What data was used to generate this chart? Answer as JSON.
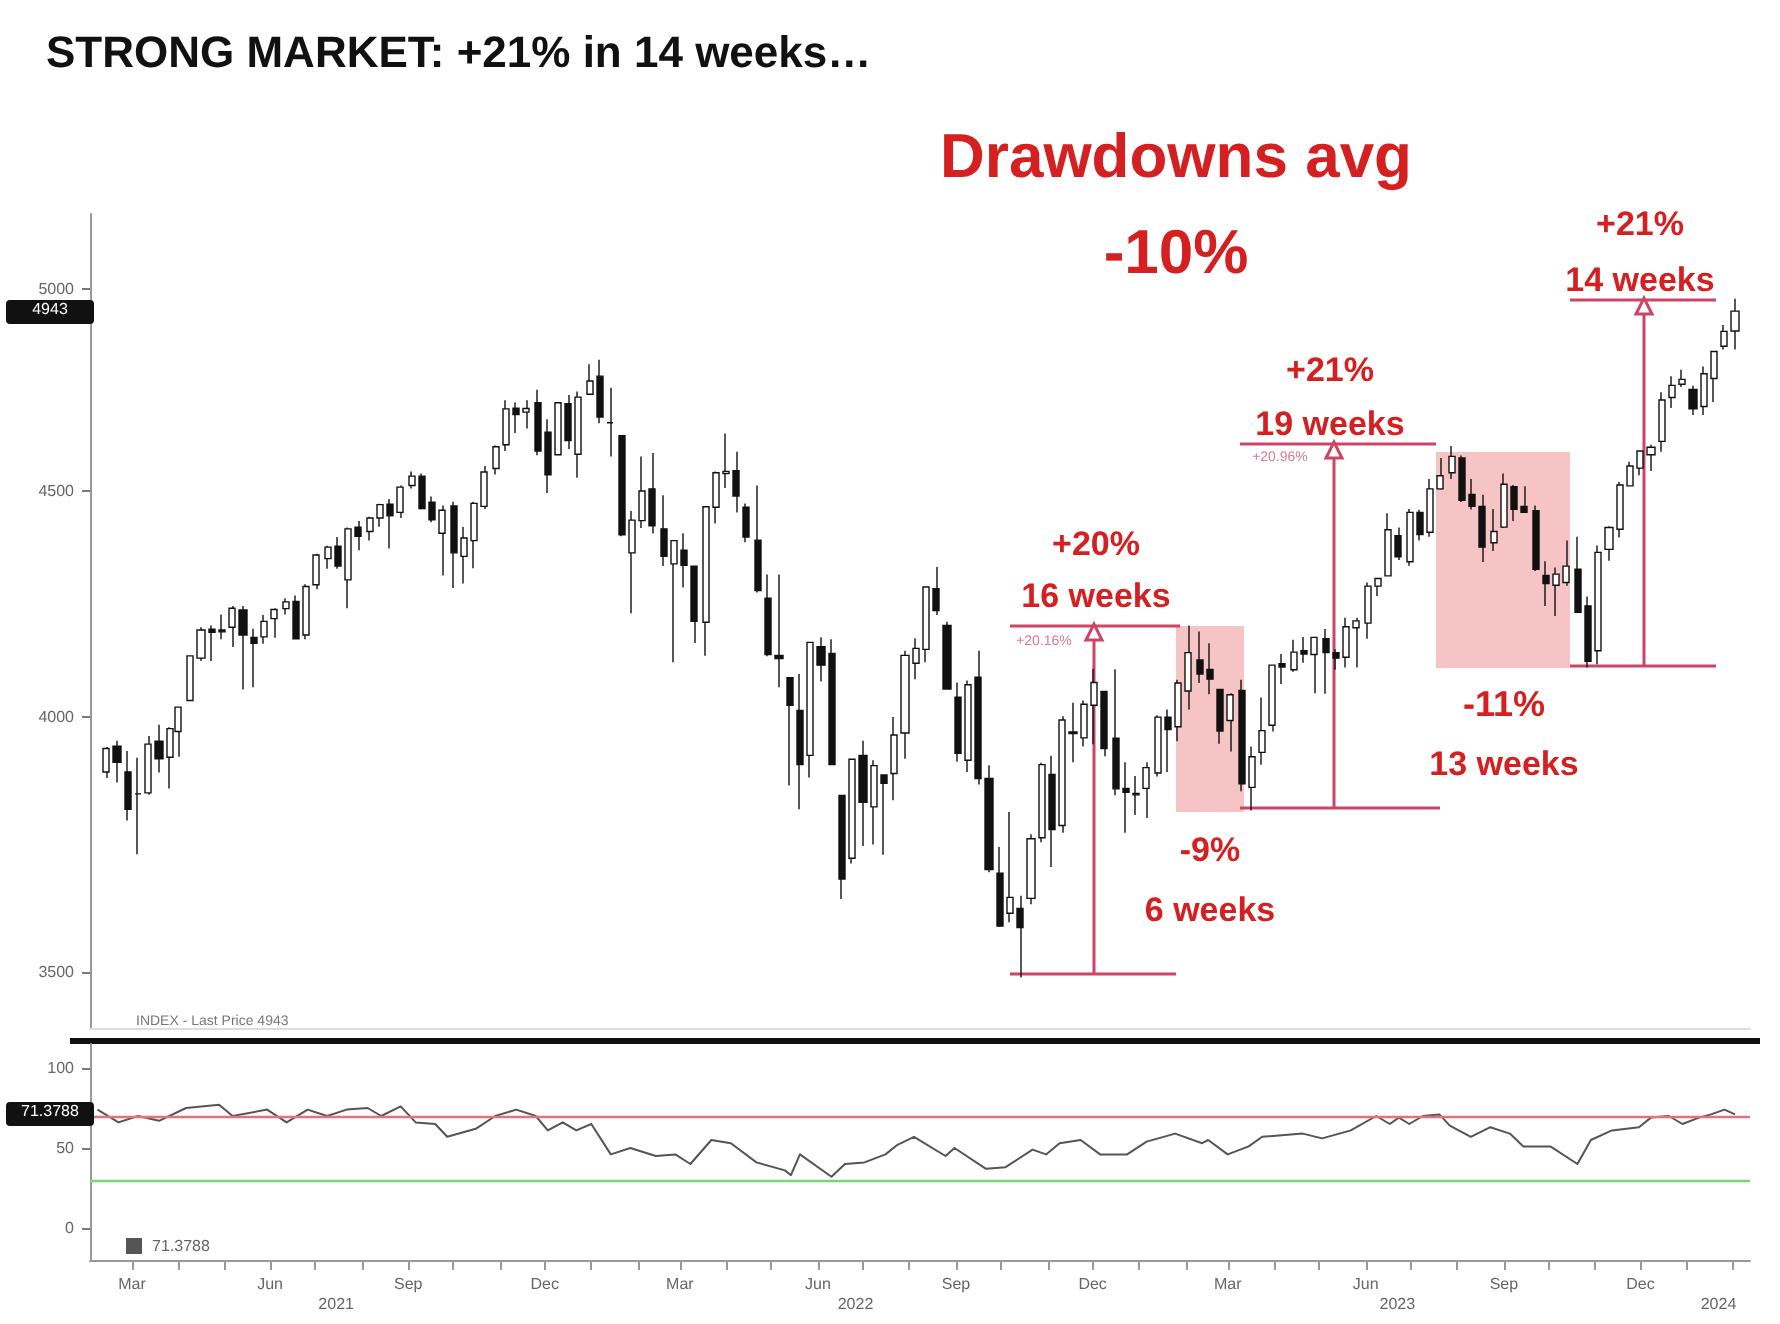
{
  "chart_data": [
    {
      "type": "candlestick",
      "title": "STRONG MARKET: +21% in 14 weeks…",
      "log": "y",
      "grid": false,
      "tick_labels": "y",
      "color": "#111111",
      "xlim": [
        "2021-02-01",
        "2024-02-12"
      ],
      "ylim": [
        3400,
        5200
      ],
      "yticks": [
        3500,
        4000,
        4500,
        5000
      ],
      "annotations": [
        "Drawdowns avg",
        "-10%",
        "INDEX - Last Price 4943",
        "4943",
        "+20%",
        "16 weeks",
        "+20.16%",
        "-9%",
        "6 weeks",
        "+21%",
        "19 weeks",
        "+20.96%",
        "-11%",
        "13 weeks",
        "+21%",
        "14 weeks"
      ],
      "x": [
        "2021-02-12",
        "2021-02-19",
        "2021-02-26",
        "2021-03-05",
        "2021-03-12",
        "2021-03-19",
        "2021-03-26",
        "2021-04-01",
        "2021-04-09",
        "2021-04-16",
        "2021-04-23",
        "2021-04-30",
        "2021-05-07",
        "2021-05-14",
        "2021-05-21",
        "2021-05-28",
        "2021-06-04",
        "2021-06-11",
        "2021-06-18",
        "2021-06-25",
        "2021-07-02",
        "2021-07-09",
        "2021-07-16",
        "2021-07-23",
        "2021-07-30",
        "2021-08-06",
        "2021-08-13",
        "2021-08-20",
        "2021-08-27",
        "2021-09-03",
        "2021-09-10",
        "2021-09-17",
        "2021-09-24",
        "2021-10-01",
        "2021-10-08",
        "2021-10-15",
        "2021-10-22",
        "2021-10-29",
        "2021-11-05",
        "2021-11-12",
        "2021-11-19",
        "2021-11-26",
        "2021-12-03",
        "2021-12-10",
        "2021-12-17",
        "2021-12-23",
        "2021-12-31",
        "2022-01-07",
        "2022-01-14",
        "2022-01-21",
        "2022-01-28",
        "2022-02-04",
        "2022-02-11",
        "2022-02-18",
        "2022-02-25",
        "2022-03-04",
        "2022-03-11",
        "2022-03-18",
        "2022-03-25",
        "2022-04-01",
        "2022-04-08",
        "2022-04-14",
        "2022-04-22",
        "2022-04-29",
        "2022-05-06",
        "2022-05-13",
        "2022-05-20",
        "2022-05-27",
        "2022-06-03",
        "2022-06-10",
        "2022-06-17",
        "2022-06-24",
        "2022-07-01",
        "2022-07-08",
        "2022-07-15",
        "2022-07-22",
        "2022-07-29",
        "2022-08-05",
        "2022-08-12",
        "2022-08-19",
        "2022-08-26",
        "2022-09-02",
        "2022-09-09",
        "2022-09-16",
        "2022-09-23",
        "2022-09-30",
        "2022-10-07",
        "2022-10-14",
        "2022-10-21",
        "2022-10-28",
        "2022-11-04",
        "2022-11-11",
        "2022-11-18",
        "2022-11-25",
        "2022-12-02",
        "2022-12-09",
        "2022-12-16",
        "2022-12-23",
        "2022-12-30",
        "2023-01-06",
        "2023-01-13",
        "2023-01-20",
        "2023-01-27",
        "2023-02-03",
        "2023-02-10",
        "2023-02-17",
        "2023-02-24",
        "2023-03-03",
        "2023-03-10",
        "2023-03-17",
        "2023-03-24",
        "2023-03-31",
        "2023-04-06",
        "2023-04-14",
        "2023-04-21",
        "2023-04-28",
        "2023-05-05",
        "2023-05-12",
        "2023-05-19",
        "2023-05-26",
        "2023-06-02",
        "2023-06-09",
        "2023-06-16",
        "2023-06-23",
        "2023-06-30",
        "2023-07-07",
        "2023-07-14",
        "2023-07-21",
        "2023-07-28",
        "2023-08-04",
        "2023-08-11",
        "2023-08-18",
        "2023-08-25",
        "2023-09-01",
        "2023-09-08",
        "2023-09-15",
        "2023-09-22",
        "2023-09-29",
        "2023-10-06",
        "2023-10-13",
        "2023-10-20",
        "2023-10-27",
        "2023-11-03",
        "2023-11-10",
        "2023-11-17",
        "2023-11-24",
        "2023-12-01",
        "2023-12-08",
        "2023-12-15",
        "2023-12-22",
        "2023-12-29",
        "2024-01-05",
        "2024-01-12",
        "2024-01-19",
        "2024-01-26",
        "2024-02-02"
      ],
      "ohlc": [
        [
          3886,
          3937,
          3874,
          3934
        ],
        [
          3939,
          3950,
          3865,
          3906
        ],
        [
          3886,
          3929,
          3789,
          3811
        ],
        [
          3842,
          3915,
          3723,
          3842
        ],
        [
          3844,
          3960,
          3840,
          3943
        ],
        [
          3949,
          3983,
          3885,
          3913
        ],
        [
          3916,
          3978,
          3853,
          3975
        ],
        [
          3969,
          4020,
          3917,
          4020
        ],
        [
          4034,
          4130,
          4034,
          4129
        ],
        [
          4124,
          4191,
          4118,
          4185
        ],
        [
          4187,
          4195,
          4118,
          4180
        ],
        [
          4185,
          4219,
          4165,
          4181
        ],
        [
          4191,
          4238,
          4148,
          4233
        ],
        [
          4229,
          4238,
          4057,
          4174
        ],
        [
          4169,
          4188,
          4062,
          4156
        ],
        [
          4170,
          4218,
          4155,
          4204
        ],
        [
          4210,
          4233,
          4168,
          4230
        ],
        [
          4232,
          4255,
          4219,
          4247
        ],
        [
          4248,
          4261,
          4165,
          4166
        ],
        [
          4174,
          4286,
          4165,
          4281
        ],
        [
          4285,
          4355,
          4275,
          4352
        ],
        [
          4344,
          4373,
          4321,
          4370
        ],
        [
          4372,
          4393,
          4321,
          4327
        ],
        [
          4296,
          4415,
          4233,
          4412
        ],
        [
          4416,
          4430,
          4363,
          4395
        ],
        [
          4406,
          4440,
          4385,
          4437
        ],
        [
          4437,
          4470,
          4417,
          4468
        ],
        [
          4469,
          4481,
          4367,
          4442
        ],
        [
          4450,
          4513,
          4437,
          4509
        ],
        [
          4513,
          4546,
          4506,
          4535
        ],
        [
          4535,
          4541,
          4457,
          4459
        ],
        [
          4474,
          4487,
          4427,
          4433
        ],
        [
          4402,
          4466,
          4306,
          4455
        ],
        [
          4465,
          4475,
          4278,
          4357
        ],
        [
          4349,
          4416,
          4288,
          4391
        ],
        [
          4385,
          4475,
          4322,
          4471
        ],
        [
          4464,
          4559,
          4458,
          4545
        ],
        [
          4553,
          4608,
          4539,
          4605
        ],
        [
          4610,
          4718,
          4595,
          4697
        ],
        [
          4699,
          4713,
          4638,
          4683
        ],
        [
          4689,
          4718,
          4649,
          4698
        ],
        [
          4712,
          4744,
          4585,
          4595
        ],
        [
          4640,
          4672,
          4495,
          4538
        ],
        [
          4586,
          4714,
          4586,
          4712
        ],
        [
          4710,
          4731,
          4600,
          4620
        ],
        [
          4587,
          4740,
          4531,
          4726
        ],
        [
          4733,
          4808,
          4733,
          4766
        ],
        [
          4778,
          4819,
          4662,
          4677
        ],
        [
          4663,
          4749,
          4582,
          4663
        ],
        [
          4632,
          4632,
          4395,
          4398
        ],
        [
          4357,
          4453,
          4222,
          4432
        ],
        [
          4431,
          4582,
          4414,
          4500
        ],
        [
          4505,
          4590,
          4401,
          4419
        ],
        [
          4412,
          4490,
          4327,
          4349
        ],
        [
          4332,
          4385,
          4115,
          4385
        ],
        [
          4363,
          4402,
          4279,
          4329
        ],
        [
          4327,
          4327,
          4157,
          4204
        ],
        [
          4202,
          4465,
          4129,
          4463
        ],
        [
          4462,
          4546,
          4424,
          4543
        ],
        [
          4541,
          4637,
          4507,
          4546
        ],
        [
          4548,
          4593,
          4450,
          4488
        ],
        [
          4462,
          4471,
          4381,
          4393
        ],
        [
          4386,
          4513,
          4268,
          4272
        ],
        [
          4255,
          4308,
          4128,
          4132
        ],
        [
          4130,
          4308,
          4062,
          4123
        ],
        [
          4082,
          4082,
          3859,
          4024
        ],
        [
          4013,
          4090,
          3811,
          3901
        ],
        [
          3920,
          4158,
          3875,
          4158
        ],
        [
          4149,
          4169,
          4074,
          4109
        ],
        [
          4134,
          4165,
          3900,
          3901
        ],
        [
          3839,
          3839,
          3637,
          3675
        ],
        [
          3715,
          3913,
          3705,
          3912
        ],
        [
          3920,
          3950,
          3739,
          3825
        ],
        [
          3816,
          3910,
          3742,
          3899
        ],
        [
          3880,
          3880,
          3722,
          3863
        ],
        [
          3883,
          3999,
          3829,
          3962
        ],
        [
          3966,
          4140,
          3913,
          4130
        ],
        [
          4113,
          4167,
          4079,
          4145
        ],
        [
          4143,
          4280,
          4115,
          4280
        ],
        [
          4276,
          4325,
          4218,
          4228
        ],
        [
          4195,
          4203,
          4057,
          4058
        ],
        [
          4041,
          4072,
          3907,
          3924
        ],
        [
          3910,
          4076,
          3886,
          4067
        ],
        [
          4083,
          4140,
          3861,
          3873
        ],
        [
          3873,
          3900,
          3688,
          3693
        ],
        [
          3686,
          3737,
          3584,
          3586
        ],
        [
          3610,
          3806,
          3593,
          3640
        ],
        [
          3619,
          3643,
          3491,
          3583
        ],
        [
          3638,
          3762,
          3627,
          3753
        ],
        [
          3755,
          3905,
          3746,
          3901
        ],
        [
          3881,
          3919,
          3698,
          3771
        ],
        [
          3779,
          4001,
          3765,
          3993
        ],
        [
          3968,
          4029,
          3906,
          3965
        ],
        [
          3956,
          4034,
          3938,
          4026
        ],
        [
          4024,
          4101,
          3943,
          4072
        ],
        [
          4053,
          4053,
          3918,
          3934
        ],
        [
          3955,
          4100,
          3839,
          3852
        ],
        [
          3853,
          3906,
          3765,
          3845
        ],
        [
          3843,
          3878,
          3800,
          3840
        ],
        [
          3853,
          3906,
          3794,
          3895
        ],
        [
          3884,
          4003,
          3877,
          3999
        ],
        [
          3999,
          4015,
          3886,
          3973
        ],
        [
          3979,
          4078,
          3949,
          4071
        ],
        [
          4054,
          4195,
          4015,
          4136
        ],
        [
          4120,
          4182,
          4071,
          4090
        ],
        [
          4100,
          4156,
          4047,
          4079
        ],
        [
          4057,
          4058,
          3944,
          3970
        ],
        [
          3992,
          4049,
          3928,
          4046
        ],
        [
          4055,
          4078,
          3847,
          3862
        ],
        [
          3855,
          3938,
          3809,
          3917
        ],
        [
          3926,
          4040,
          3901,
          3971
        ],
        [
          3982,
          4110,
          3969,
          4109
        ],
        [
          4112,
          4133,
          4069,
          4105
        ],
        [
          4099,
          4164,
          4095,
          4137
        ],
        [
          4140,
          4170,
          4114,
          4133
        ],
        [
          4132,
          4170,
          4049,
          4169
        ],
        [
          4166,
          4187,
          4048,
          4136
        ],
        [
          4136,
          4143,
          4099,
          4124
        ],
        [
          4126,
          4212,
          4104,
          4192
        ],
        [
          4190,
          4212,
          4104,
          4205
        ],
        [
          4200,
          4290,
          4166,
          4282
        ],
        [
          4282,
          4299,
          4260,
          4299
        ],
        [
          4305,
          4448,
          4305,
          4410
        ],
        [
          4396,
          4415,
          4341,
          4348
        ],
        [
          4337,
          4458,
          4328,
          4450
        ],
        [
          4450,
          4456,
          4385,
          4399
        ],
        [
          4404,
          4528,
          4394,
          4505
        ],
        [
          4505,
          4578,
          4503,
          4536
        ],
        [
          4543,
          4607,
          4528,
          4582
        ],
        [
          4578,
          4584,
          4474,
          4478
        ],
        [
          4492,
          4528,
          4457,
          4464
        ],
        [
          4464,
          4491,
          4336,
          4370
        ],
        [
          4380,
          4458,
          4361,
          4406
        ],
        [
          4416,
          4541,
          4414,
          4516
        ],
        [
          4510,
          4514,
          4430,
          4457
        ],
        [
          4464,
          4511,
          4450,
          4450
        ],
        [
          4454,
          4466,
          4316,
          4320
        ],
        [
          4306,
          4338,
          4238,
          4288
        ],
        [
          4284,
          4324,
          4216,
          4309
        ],
        [
          4290,
          4385,
          4283,
          4327
        ],
        [
          4320,
          4394,
          4223,
          4224
        ],
        [
          4238,
          4259,
          4104,
          4117
        ],
        [
          4140,
          4374,
          4111,
          4358
        ],
        [
          4365,
          4418,
          4339,
          4415
        ],
        [
          4411,
          4521,
          4392,
          4514
        ],
        [
          4512,
          4569,
          4511,
          4559
        ],
        [
          4554,
          4595,
          4537,
          4595
        ],
        [
          4586,
          4610,
          4547,
          4604
        ],
        [
          4618,
          4738,
          4593,
          4719
        ],
        [
          4725,
          4778,
          4699,
          4755
        ],
        [
          4758,
          4794,
          4751,
          4770
        ],
        [
          4745,
          4754,
          4682,
          4697
        ],
        [
          4703,
          4802,
          4682,
          4784
        ],
        [
          4772,
          4842,
          4714,
          4840
        ],
        [
          4853,
          4907,
          4845,
          4891
        ],
        [
          4892,
          4975,
          4845,
          4943
        ]
      ]
    },
    {
      "type": "line",
      "grid": false,
      "marker": "none",
      "legend": "bottom left",
      "xlim": [
        "2021-02-01",
        "2024-02-12"
      ],
      "ylim": [
        -20,
        115
      ],
      "yticks": [
        0,
        50,
        100
      ],
      "xticks": [
        {
          "value": "2021-03-01",
          "label": "Mar"
        },
        {
          "value": "2021-04-01",
          "label": null
        },
        {
          "value": "2021-05-01",
          "label": null
        },
        {
          "value": "2021-06-01",
          "label": "Jun"
        },
        {
          "value": "2021-07-01",
          "label": null
        },
        {
          "value": "2021-08-01",
          "label": null
        },
        {
          "value": "2021-09-01",
          "label": "Sep"
        },
        {
          "value": "2021-10-01",
          "label": null
        },
        {
          "value": "2021-11-01",
          "label": null
        },
        {
          "value": "2021-12-01",
          "label": "Dec"
        },
        {
          "value": "2022-01-01",
          "label": null
        },
        {
          "value": "2022-02-01",
          "label": null
        },
        {
          "value": "2022-03-01",
          "label": "Mar"
        },
        {
          "value": "2022-04-01",
          "label": null
        },
        {
          "value": "2022-05-01",
          "label": null
        },
        {
          "value": "2022-06-01",
          "label": "Jun"
        },
        {
          "value": "2022-07-01",
          "label": null
        },
        {
          "value": "2022-08-01",
          "label": null
        },
        {
          "value": "2022-09-01",
          "label": "Sep"
        },
        {
          "value": "2022-10-01",
          "label": null
        },
        {
          "value": "2022-11-01",
          "label": null
        },
        {
          "value": "2022-12-01",
          "label": "Dec"
        },
        {
          "value": "2023-01-01",
          "label": null
        },
        {
          "value": "2023-02-01",
          "label": null
        },
        {
          "value": "2023-03-01",
          "label": "Mar"
        },
        {
          "value": "2023-04-01",
          "label": null
        },
        {
          "value": "2023-05-01",
          "label": null
        },
        {
          "value": "2023-06-01",
          "label": "Jun"
        },
        {
          "value": "2023-07-01",
          "label": null
        },
        {
          "value": "2023-08-01",
          "label": null
        },
        {
          "value": "2023-09-01",
          "label": "Sep"
        },
        {
          "value": "2023-10-01",
          "label": null
        },
        {
          "value": "2023-11-01",
          "label": null
        },
        {
          "value": "2023-12-01",
          "label": "Dec"
        },
        {
          "value": "2024-01-01",
          "label": null
        },
        {
          "value": "2024-02-01",
          "label": null
        }
      ],
      "x2lim": [
        "2021-02-01",
        "2024-02-12"
      ],
      "x2ticks": [
        {
          "value": "2021-07-15",
          "label": "2021"
        },
        {
          "value": "2022-06-26",
          "label": "2022"
        },
        {
          "value": "2023-06-22",
          "label": "2023"
        },
        {
          "value": "2024-01-22",
          "label": "2024"
        }
      ],
      "ref_lines": [
        {
          "axis": "y",
          "value": 70,
          "label": null,
          "color": "#e57373"
        },
        {
          "axis": "y",
          "value": 30,
          "label": null,
          "color": "#7bd47b"
        }
      ],
      "annotations": [
        "71.3788"
      ],
      "x": [
        "2021-02-06",
        "2021-02-20",
        "2021-03-05",
        "2021-03-19",
        "2021-04-06",
        "2021-04-28",
        "2021-05-07",
        "2021-05-30",
        "2021-06-12",
        "2021-06-26",
        "2021-07-09",
        "2021-07-22",
        "2021-08-05",
        "2021-08-14",
        "2021-08-27",
        "2021-09-06",
        "2021-09-19",
        "2021-09-27",
        "2021-10-16",
        "2021-10-29",
        "2021-11-12",
        "2021-11-25",
        "2021-12-03",
        "2021-12-13",
        "2021-12-22",
        "2022-01-01",
        "2022-01-14",
        "2022-01-27",
        "2022-02-13",
        "2022-02-26",
        "2022-03-08",
        "2022-03-22",
        "2022-04-04",
        "2022-04-21",
        "2022-05-10",
        "2022-05-14",
        "2022-05-20",
        "2022-06-10",
        "2022-06-19",
        "2022-07-02",
        "2022-07-16",
        "2022-07-24",
        "2022-08-04",
        "2022-08-25",
        "2022-08-31",
        "2022-09-21",
        "2022-10-04",
        "2022-10-22",
        "2022-10-31",
        "2022-11-09",
        "2022-11-23",
        "2022-12-06",
        "2022-12-24",
        "2023-01-06",
        "2023-01-25",
        "2023-02-12",
        "2023-02-16",
        "2023-03-01",
        "2023-03-15",
        "2023-03-24",
        "2023-04-20",
        "2023-05-03",
        "2023-05-22",
        "2023-06-08",
        "2023-06-17",
        "2023-06-23",
        "2023-06-30",
        "2023-07-09",
        "2023-07-20",
        "2023-07-27",
        "2023-08-10",
        "2023-08-23",
        "2023-09-05",
        "2023-09-14",
        "2023-10-02",
        "2023-10-20",
        "2023-10-29",
        "2023-11-12",
        "2023-11-30",
        "2023-12-08",
        "2023-12-20",
        "2023-12-29",
        "2024-01-09",
        "2024-01-17",
        "2024-01-26",
        "2024-02-02"
      ],
      "series": [
        {
          "name": "71.3788",
          "color": "#555555",
          "values": [
            74,
            66,
            70,
            67,
            75,
            77,
            70,
            74,
            66,
            74,
            70,
            74,
            75,
            70,
            76,
            66,
            65,
            57,
            62,
            70,
            74,
            70,
            61,
            66,
            61,
            65,
            46,
            50,
            45,
            46,
            40,
            55,
            53,
            41,
            36,
            33,
            46,
            32,
            40,
            41,
            46,
            52,
            57,
            45,
            50,
            37,
            38,
            49,
            46,
            53,
            55,
            46,
            46,
            54,
            59,
            53,
            55,
            46,
            51,
            57,
            59,
            56,
            61,
            70,
            65,
            69,
            65,
            70,
            71,
            64,
            57,
            63,
            59,
            51,
            51,
            40,
            55,
            61,
            63,
            69,
            70,
            65,
            69,
            71,
            74,
            71
          ]
        }
      ]
    }
  ]
}
